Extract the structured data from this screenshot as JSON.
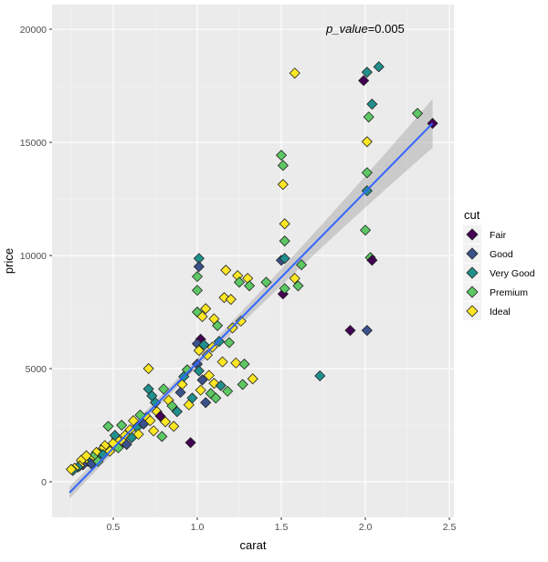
{
  "chart_data": {
    "type": "scatter",
    "xlabel": "carat",
    "ylabel": "price",
    "xlim": [
      0.136,
      2.527
    ],
    "ylim": [
      -1570,
      21090
    ],
    "xticks": [
      0.5,
      1.0,
      1.5,
      2.0,
      2.5
    ],
    "xtick_labels": [
      "0.5",
      "1.0",
      "1.5",
      "2.0",
      "2.5"
    ],
    "yticks": [
      0,
      5000,
      10000,
      15000,
      20000
    ],
    "ytick_labels": [
      "0",
      "5000",
      "10000",
      "15000",
      "20000"
    ],
    "grid": true,
    "annotation": {
      "label": "p_value",
      "text": "=0.005",
      "x": 2.0,
      "y": 20000
    },
    "legend": {
      "title": "cut",
      "position": "right",
      "entries": [
        {
          "name": "Fair",
          "color": "#440154"
        },
        {
          "name": "Good",
          "color": "#3B528B"
        },
        {
          "name": "Very Good",
          "color": "#21908C"
        },
        {
          "name": "Premium",
          "color": "#5DC863"
        },
        {
          "name": "Ideal",
          "color": "#FDE725"
        }
      ]
    },
    "smooth": {
      "method": "lm",
      "color": "#3366FF",
      "x": [
        0.24,
        2.4
      ],
      "y": [
        -480,
        15840
      ]
    },
    "points": [
      [
        1.58,
        18060,
        "Ideal"
      ],
      [
        1.99,
        17730,
        "Fair"
      ],
      [
        2.01,
        18100,
        "Very Good"
      ],
      [
        2.08,
        18340,
        "Very Good"
      ],
      [
        2.04,
        16690,
        "Very Good"
      ],
      [
        2.02,
        16120,
        "Premium"
      ],
      [
        2.31,
        16280,
        "Premium"
      ],
      [
        2.4,
        15840,
        "Fair"
      ],
      [
        2.01,
        15030,
        "Ideal"
      ],
      [
        1.5,
        14430,
        "Premium"
      ],
      [
        1.51,
        13980,
        "Premium"
      ],
      [
        1.51,
        13140,
        "Ideal"
      ],
      [
        2.01,
        13660,
        "Premium"
      ],
      [
        2.01,
        12860,
        "Very Good"
      ],
      [
        1.52,
        11400,
        "Ideal"
      ],
      [
        1.52,
        10640,
        "Premium"
      ],
      [
        2.0,
        11120,
        "Premium"
      ],
      [
        2.03,
        9910,
        "Premium"
      ],
      [
        2.04,
        9790,
        "Fair"
      ],
      [
        1.5,
        9790,
        "Good"
      ],
      [
        1.52,
        9870,
        "Very Good"
      ],
      [
        1.62,
        9590,
        "Premium"
      ],
      [
        1.58,
        8990,
        "Ideal"
      ],
      [
        1.6,
        8660,
        "Premium"
      ],
      [
        1.51,
        8300,
        "Fair"
      ],
      [
        1.52,
        8540,
        "Premium"
      ],
      [
        1.41,
        8820,
        "Premium"
      ],
      [
        1.01,
        9870,
        "Very Good"
      ],
      [
        1.01,
        9510,
        "Good"
      ],
      [
        1.0,
        9070,
        "Premium"
      ],
      [
        1.0,
        8460,
        "Premium"
      ],
      [
        1.17,
        9350,
        "Ideal"
      ],
      [
        1.24,
        9110,
        "Ideal"
      ],
      [
        1.3,
        8990,
        "Ideal"
      ],
      [
        1.25,
        8820,
        "Premium"
      ],
      [
        1.16,
        8140,
        "Ideal"
      ],
      [
        1.2,
        8060,
        "Ideal"
      ],
      [
        1.31,
        8660,
        "Premium"
      ],
      [
        1.91,
        6690,
        "Fair"
      ],
      [
        2.01,
        6690,
        "Good"
      ],
      [
        1.73,
        4680,
        "Very Good"
      ],
      [
        0.96,
        1730,
        "Fair"
      ],
      [
        0.71,
        5000,
        "Ideal"
      ],
      [
        1.0,
        7500,
        "Premium"
      ],
      [
        1.03,
        7300,
        "Ideal"
      ],
      [
        1.05,
        7650,
        "Ideal"
      ],
      [
        1.1,
        7200,
        "Ideal"
      ],
      [
        1.12,
        6900,
        "Premium"
      ],
      [
        1.21,
        6800,
        "Ideal"
      ],
      [
        1.26,
        7100,
        "Ideal"
      ],
      [
        1.02,
        6300,
        "Fair"
      ],
      [
        1.0,
        6100,
        "Good"
      ],
      [
        1.01,
        5800,
        "Ideal"
      ],
      [
        1.04,
        6050,
        "Very Good"
      ],
      [
        1.06,
        5600,
        "Ideal"
      ],
      [
        1.09,
        5950,
        "Ideal"
      ],
      [
        1.13,
        6200,
        "Very Good"
      ],
      [
        1.15,
        5300,
        "Ideal"
      ],
      [
        1.19,
        6150,
        "Premium"
      ],
      [
        1.23,
        5250,
        "Ideal"
      ],
      [
        1.28,
        5200,
        "Premium"
      ],
      [
        1.0,
        5200,
        "Good"
      ],
      [
        1.01,
        4900,
        "Very Good"
      ],
      [
        1.03,
        4500,
        "Good"
      ],
      [
        1.07,
        4700,
        "Ideal"
      ],
      [
        1.1,
        4350,
        "Ideal"
      ],
      [
        1.02,
        4050,
        "Ideal"
      ],
      [
        1.08,
        3900,
        "Premium"
      ],
      [
        1.11,
        3700,
        "Premium"
      ],
      [
        0.91,
        4300,
        "Ideal"
      ],
      [
        0.9,
        3950,
        "Good"
      ],
      [
        0.92,
        4650,
        "Very Good"
      ],
      [
        0.94,
        4950,
        "Premium"
      ],
      [
        0.8,
        4100,
        "Premium"
      ],
      [
        0.83,
        3600,
        "Ideal"
      ],
      [
        0.85,
        3350,
        "Premium"
      ],
      [
        0.73,
        3800,
        "Very Good"
      ],
      [
        0.75,
        3500,
        "Very Good"
      ],
      [
        0.71,
        4100,
        "Very Good"
      ],
      [
        0.76,
        3100,
        "Ideal"
      ],
      [
        0.78,
        2900,
        "Fair"
      ],
      [
        0.7,
        2850,
        "Ideal"
      ],
      [
        0.72,
        2700,
        "Ideal"
      ],
      [
        0.66,
        2950,
        "Premium"
      ],
      [
        0.62,
        2700,
        "Ideal"
      ],
      [
        0.64,
        2400,
        "Very Good"
      ],
      [
        0.6,
        2300,
        "Ideal"
      ],
      [
        0.57,
        2050,
        "Ideal"
      ],
      [
        0.55,
        2500,
        "Premium"
      ],
      [
        0.52,
        1900,
        "Ideal"
      ],
      [
        0.5,
        1700,
        "Ideal"
      ],
      [
        0.51,
        2050,
        "Very Good"
      ],
      [
        0.47,
        2450,
        "Premium"
      ],
      [
        0.45,
        1600,
        "Ideal"
      ],
      [
        0.43,
        1400,
        "Ideal"
      ],
      [
        0.42,
        1250,
        "Very Good"
      ],
      [
        0.4,
        1300,
        "Ideal"
      ],
      [
        0.38,
        1100,
        "Premium"
      ],
      [
        0.36,
        1000,
        "Ideal"
      ],
      [
        0.35,
        900,
        "Very Good"
      ],
      [
        0.33,
        850,
        "Ideal"
      ],
      [
        0.32,
        750,
        "Good"
      ],
      [
        0.31,
        950,
        "Ideal"
      ],
      [
        0.3,
        700,
        "Ideal"
      ],
      [
        0.29,
        650,
        "Very Good"
      ],
      [
        0.27,
        600,
        "Ideal"
      ],
      [
        0.26,
        500,
        "Very Good"
      ],
      [
        0.25,
        550,
        "Ideal"
      ],
      [
        0.34,
        1150,
        "Ideal"
      ],
      [
        0.37,
        800,
        "Good"
      ],
      [
        0.41,
        900,
        "Premium"
      ],
      [
        0.44,
        1200,
        "Very Good"
      ],
      [
        0.48,
        1350,
        "Ideal"
      ],
      [
        0.53,
        1500,
        "Premium"
      ],
      [
        0.56,
        1750,
        "Ideal"
      ],
      [
        0.58,
        1650,
        "Good"
      ],
      [
        0.61,
        1950,
        "Very Good"
      ],
      [
        0.65,
        2100,
        "Ideal"
      ],
      [
        0.68,
        2550,
        "Good"
      ],
      [
        0.74,
        2250,
        "Ideal"
      ],
      [
        0.79,
        2000,
        "Premium"
      ],
      [
        0.81,
        2650,
        "Ideal"
      ],
      [
        0.86,
        2450,
        "Ideal"
      ],
      [
        0.88,
        3100,
        "Very Good"
      ],
      [
        0.95,
        3400,
        "Ideal"
      ],
      [
        0.97,
        3700,
        "Very Good"
      ],
      [
        1.05,
        3500,
        "Good"
      ],
      [
        1.14,
        4250,
        "Very Good"
      ],
      [
        1.27,
        4300,
        "Premium"
      ],
      [
        1.33,
        4550,
        "Ideal"
      ],
      [
        1.18,
        4000,
        "Premium"
      ]
    ]
  }
}
